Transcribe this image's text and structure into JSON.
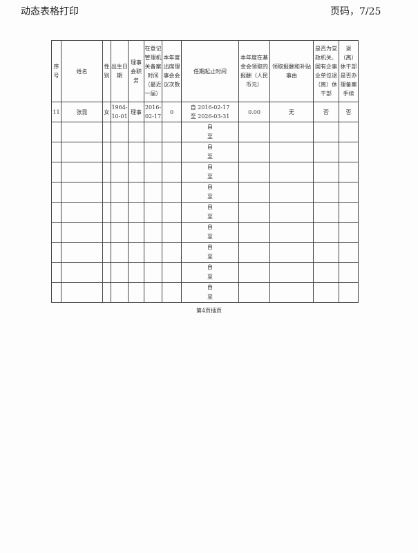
{
  "header": {
    "title": "动态表格打印",
    "page": "页码，7/25"
  },
  "table": {
    "columns": [
      "序号",
      "姓名",
      "性别",
      "出生日期",
      "理事会职务",
      "在登记管理机关备案时间（最近一届）",
      "本年度出席理事会会议次数",
      "任期起止时间",
      "本年度在基金会领取的报酬（人民币元）",
      "领取报酬和补贴事由",
      "是否为党政机关、国有企事业单位退（离）休干部",
      "退（离）休干部是否办理备案手续"
    ],
    "rows": [
      {
        "no": "11",
        "name": "张昆",
        "gender": "女",
        "birth": "1964-10-01",
        "role": "理事",
        "filed": "2016-02-17",
        "attend": "0",
        "term_from": "自 2016-02-17",
        "term_to": "至 2026-03-31",
        "pay": "0.00",
        "reason": "无",
        "retired": "否",
        "filed_retired": "否"
      }
    ],
    "empty_from": "自",
    "empty_to": "至"
  },
  "footer": "第4页插页"
}
